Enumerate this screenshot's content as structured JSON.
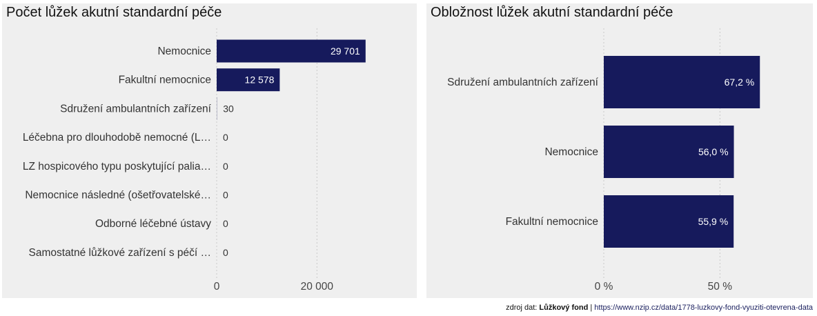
{
  "chart_data": [
    {
      "type": "bar",
      "orientation": "horizontal",
      "title": "Počet lůžek akutní standardní péče",
      "categories": [
        "Nemocnice",
        "Fakultní nemocnice",
        "Sdružení ambulantních zařízení",
        "Léčebna pro dlouhodobě nemocné (L…",
        "LZ hospicového typu poskytující palia…",
        "Nemocnice následné (ošetřovatelské…",
        "Odborné léčebné ústavy",
        "Samostatné lůžkové zařízení s péčí …"
      ],
      "values": [
        29701,
        12578,
        30,
        0,
        0,
        0,
        0,
        0
      ],
      "value_labels": [
        "29 701",
        "12 578",
        "30",
        "0",
        "0",
        "0",
        "0",
        "0"
      ],
      "xlim": [
        0,
        39500
      ],
      "xticks": [
        0,
        20000
      ],
      "xtick_labels": [
        "0",
        "20 000"
      ],
      "grid": true,
      "bar_color": "#161a5c"
    },
    {
      "type": "bar",
      "orientation": "horizontal",
      "title": "Obložnost lůžek akutní standardní péče",
      "categories": [
        "Sdružení ambulantních zařízení",
        "Nemocnice",
        "Fakultní nemocnice"
      ],
      "values": [
        67.2,
        56.0,
        55.9
      ],
      "value_labels": [
        "67,2 %",
        "56,0 %",
        "55,9 %"
      ],
      "xlim": [
        0,
        90
      ],
      "xticks": [
        0,
        50
      ],
      "xtick_labels": [
        "0 %",
        "50 %"
      ],
      "grid": true,
      "bar_color": "#161a5c"
    }
  ],
  "source": {
    "prefix": "zdroj dat: ",
    "name": "Lůžkový fond",
    "separator": " | ",
    "url": "https://www.nzip.cz/data/1778-luzkovy-fond-vyuziti-otevrena-data"
  }
}
